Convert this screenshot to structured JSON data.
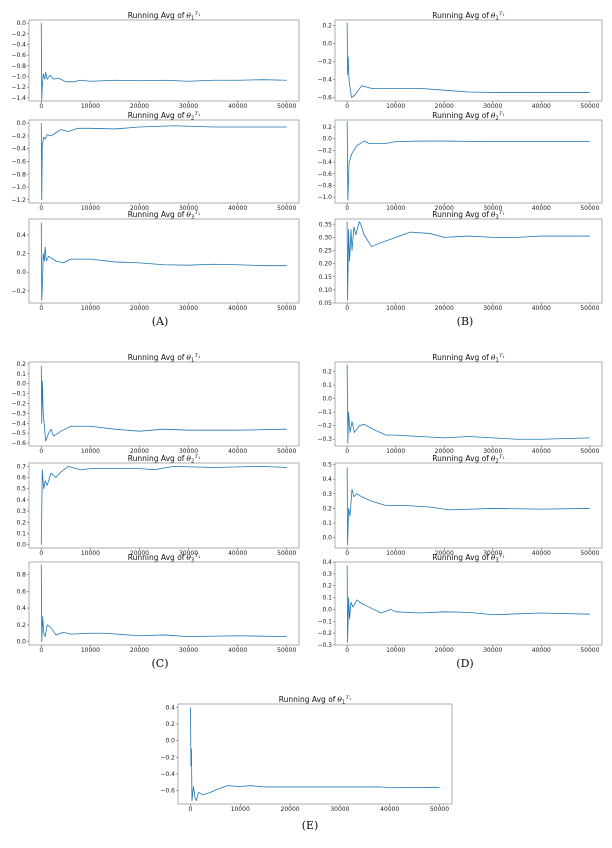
{
  "line_color": "#1f77b4",
  "chart_data": [
    {
      "group": "A",
      "group_label": "(A)",
      "panel": "A1",
      "type": "line",
      "title": {
        "prefix": "Running Avg of",
        "var": "θ",
        "sub": "1",
        "sup": "T",
        "sup_sub": "1"
      },
      "xlim": [
        -2500,
        52500
      ],
      "ylim": [
        -1.46,
        0.06
      ],
      "xticks": [
        0,
        10000,
        20000,
        30000,
        40000,
        50000
      ],
      "yticks": [
        0.0,
        -0.2,
        -0.4,
        -0.6,
        -0.8,
        -1.0,
        -1.2,
        -1.4
      ],
      "grid": false,
      "x": [
        0,
        100,
        200,
        400,
        700,
        900,
        1200,
        1800,
        2500,
        3500,
        5000,
        6500,
        8000,
        10000,
        15000,
        20000,
        25000,
        30000,
        35000,
        40000,
        45000,
        50000
      ],
      "y": [
        0,
        -1.45,
        -1.2,
        -0.95,
        -1.05,
        -0.92,
        -1.05,
        -0.98,
        -1.05,
        -1.03,
        -1.1,
        -1.1,
        -1.07,
        -1.09,
        -1.07,
        -1.08,
        -1.07,
        -1.09,
        -1.07,
        -1.07,
        -1.06,
        -1.07
      ]
    },
    {
      "group": "A",
      "panel": "A2",
      "type": "line",
      "title": {
        "prefix": "Running Avg of",
        "var": "θ",
        "sub": "2",
        "sup": "T",
        "sup_sub": "1"
      },
      "xlim": [
        -2500,
        52500
      ],
      "ylim": [
        -1.25,
        0.05
      ],
      "xticks": [
        0,
        10000,
        20000,
        30000,
        40000,
        50000
      ],
      "yticks": [
        0.0,
        -0.2,
        -0.4,
        -0.6,
        -0.8,
        -1.0,
        -1.2
      ],
      "grid": false,
      "x": [
        0,
        100,
        200,
        500,
        800,
        1200,
        2000,
        3000,
        4000,
        5500,
        7500,
        10000,
        15000,
        20000,
        27000,
        35000,
        45000,
        50000
      ],
      "y": [
        0,
        -1.2,
        -0.35,
        -0.22,
        -0.25,
        -0.18,
        -0.2,
        -0.15,
        -0.1,
        -0.13,
        -0.08,
        -0.08,
        -0.09,
        -0.06,
        -0.04,
        -0.06,
        -0.06,
        -0.06
      ]
    },
    {
      "group": "A",
      "panel": "A3",
      "type": "line",
      "title": {
        "prefix": "Running Avg of",
        "var": "θ",
        "sub": "3",
        "sup": "T",
        "sup_sub": "1"
      },
      "xlim": [
        -2500,
        52500
      ],
      "ylim": [
        -0.33,
        0.57
      ],
      "xticks": [
        0,
        10000,
        20000,
        30000,
        40000,
        50000
      ],
      "yticks": [
        0.4,
        0.2,
        0.0,
        -0.2
      ],
      "grid": false,
      "x": [
        0,
        100,
        200,
        400,
        600,
        800,
        1000,
        1500,
        3000,
        4500,
        6000,
        10000,
        15000,
        20000,
        25000,
        30000,
        35000,
        40000,
        45000,
        50000
      ],
      "y": [
        0.53,
        -0.3,
        -0.18,
        0.2,
        0.12,
        0.27,
        0.12,
        0.17,
        0.12,
        0.1,
        0.14,
        0.14,
        0.11,
        0.1,
        0.08,
        0.075,
        0.085,
        0.08,
        0.07,
        0.07
      ]
    },
    {
      "group": "B",
      "group_label": "(B)",
      "panel": "B1",
      "type": "line",
      "title": {
        "prefix": "Running Avg of",
        "var": "θ",
        "sub": "1",
        "sup": "T",
        "sup_sub": "1"
      },
      "xlim": [
        -2500,
        52500
      ],
      "ylim": [
        -0.64,
        0.26
      ],
      "xticks": [
        0,
        10000,
        20000,
        30000,
        40000,
        50000
      ],
      "yticks": [
        0.2,
        0.0,
        -0.2,
        -0.4,
        -0.6
      ],
      "grid": false,
      "x": [
        0,
        100,
        200,
        400,
        900,
        1500,
        3000,
        5000,
        10000,
        15000,
        20000,
        25000,
        30000,
        40000,
        50000
      ],
      "y": [
        0.23,
        -0.35,
        -0.15,
        -0.42,
        -0.6,
        -0.58,
        -0.47,
        -0.5,
        -0.5,
        -0.5,
        -0.52,
        -0.54,
        -0.545,
        -0.545,
        -0.545
      ]
    },
    {
      "group": "B",
      "panel": "B2",
      "type": "line",
      "title": {
        "prefix": "Running Avg of",
        "var": "θ",
        "sub": "2",
        "sup": "T",
        "sup_sub": "1"
      },
      "xlim": [
        -2500,
        52500
      ],
      "ylim": [
        -1.1,
        0.32
      ],
      "xticks": [
        0,
        10000,
        20000,
        30000,
        40000,
        50000
      ],
      "yticks": [
        0.2,
        0.0,
        -0.2,
        -0.4,
        -0.6,
        -0.8,
        -1.0
      ],
      "grid": false,
      "x": [
        0,
        150,
        400,
        1000,
        2000,
        3500,
        4500,
        8000,
        10000,
        15000,
        20000,
        30000,
        50000
      ],
      "y": [
        0.3,
        -1.05,
        -0.4,
        -0.25,
        -0.12,
        -0.04,
        -0.08,
        -0.08,
        -0.05,
        -0.04,
        -0.04,
        -0.05,
        -0.05
      ]
    },
    {
      "group": "B",
      "panel": "B3",
      "type": "line",
      "title": {
        "prefix": "Running Avg of",
        "var": "θ",
        "sub": "3",
        "sup": "T",
        "sup_sub": "1"
      },
      "xlim": [
        -2500,
        52500
      ],
      "ylim": [
        0.05,
        0.37
      ],
      "xticks": [
        0,
        10000,
        20000,
        30000,
        40000,
        50000
      ],
      "yticks": [
        0.35,
        0.3,
        0.25,
        0.2,
        0.15,
        0.1,
        0.05
      ],
      "grid": false,
      "x": [
        0,
        100,
        300,
        500,
        800,
        1000,
        1400,
        1800,
        2500,
        2800,
        3500,
        5000,
        7000,
        10000,
        13000,
        17000,
        20000,
        25000,
        30000,
        35000,
        40000,
        45000,
        50000
      ],
      "y": [
        0.36,
        0.06,
        0.33,
        0.21,
        0.33,
        0.25,
        0.34,
        0.31,
        0.36,
        0.35,
        0.31,
        0.265,
        0.28,
        0.3,
        0.32,
        0.315,
        0.3,
        0.305,
        0.3,
        0.3,
        0.305,
        0.305,
        0.305
      ]
    },
    {
      "group": "C",
      "group_label": "(C)",
      "panel": "C1",
      "type": "line",
      "title": {
        "prefix": "Running Avg of",
        "var": "θ",
        "sub": "1",
        "sup": "T",
        "sup_sub": "1"
      },
      "xlim": [
        -2500,
        52500
      ],
      "ylim": [
        -0.63,
        0.22
      ],
      "xticks": [
        0,
        10000,
        20000,
        30000,
        40000,
        50000
      ],
      "yticks": [
        0.2,
        0.1,
        0.0,
        -0.1,
        -0.2,
        -0.3,
        -0.4,
        -0.5,
        -0.6
      ],
      "grid": false,
      "x": [
        0,
        100,
        200,
        400,
        900,
        1500,
        2000,
        2500,
        4000,
        6000,
        10000,
        15000,
        20000,
        25000,
        30000,
        40000,
        50000
      ],
      "y": [
        0.18,
        -0.4,
        0.03,
        -0.3,
        -0.58,
        -0.5,
        -0.46,
        -0.53,
        -0.48,
        -0.43,
        -0.43,
        -0.46,
        -0.48,
        -0.46,
        -0.47,
        -0.47,
        -0.46
      ]
    },
    {
      "group": "C",
      "panel": "C2",
      "type": "line",
      "title": {
        "prefix": "Running Avg of",
        "var": "θ",
        "sub": "2",
        "sup": "T",
        "sup_sub": "1"
      },
      "xlim": [
        -2500,
        52500
      ],
      "ylim": [
        -0.03,
        0.73
      ],
      "xticks": [
        0,
        10000,
        20000,
        30000,
        40000,
        50000
      ],
      "yticks": [
        0.7,
        0.6,
        0.5,
        0.4,
        0.3,
        0.2,
        0.1,
        0.0
      ],
      "grid": false,
      "x": [
        0,
        100,
        200,
        500,
        800,
        1200,
        2000,
        3000,
        4000,
        5500,
        8000,
        10000,
        20000,
        23000,
        27000,
        35000,
        45000,
        50000
      ],
      "y": [
        0.0,
        0.3,
        0.67,
        0.5,
        0.57,
        0.53,
        0.64,
        0.6,
        0.65,
        0.7,
        0.67,
        0.68,
        0.68,
        0.67,
        0.7,
        0.69,
        0.7,
        0.69
      ]
    },
    {
      "group": "C",
      "panel": "C3",
      "type": "line",
      "title": {
        "prefix": "Running Avg of",
        "var": "θ",
        "sub": "3",
        "sup": "T",
        "sup_sub": "1"
      },
      "xlim": [
        -2500,
        52500
      ],
      "ylim": [
        -0.04,
        0.95
      ],
      "xticks": [
        0,
        10000,
        20000,
        30000,
        40000,
        50000
      ],
      "yticks": [
        0.8,
        0.6,
        0.4,
        0.2,
        0.0
      ],
      "grid": false,
      "x": [
        0,
        100,
        300,
        500,
        800,
        1200,
        1800,
        3000,
        4500,
        6000,
        10000,
        13000,
        20000,
        25000,
        30000,
        40000,
        50000
      ],
      "y": [
        0.92,
        0.0,
        0.3,
        0.1,
        0.06,
        0.2,
        0.18,
        0.08,
        0.11,
        0.09,
        0.1,
        0.1,
        0.07,
        0.08,
        0.06,
        0.07,
        0.06
      ]
    },
    {
      "group": "D",
      "group_label": "(D)",
      "panel": "D1",
      "type": "line",
      "title": {
        "prefix": "Running Avg of",
        "var": "θ",
        "sub": "1",
        "sup": "T",
        "sup_sub": "1"
      },
      "xlim": [
        -2500,
        52500
      ],
      "ylim": [
        -0.35,
        0.27
      ],
      "xticks": [
        0,
        10000,
        20000,
        30000,
        40000,
        50000
      ],
      "yticks": [
        0.2,
        0.1,
        0.0,
        -0.1,
        -0.2,
        -0.3
      ],
      "grid": false,
      "x": [
        0,
        150,
        300,
        600,
        1000,
        1500,
        2500,
        3500,
        5000,
        8000,
        10000,
        15000,
        20000,
        25000,
        30000,
        35000,
        40000,
        50000
      ],
      "y": [
        0.25,
        -0.33,
        -0.1,
        -0.25,
        -0.17,
        -0.25,
        -0.2,
        -0.19,
        -0.22,
        -0.27,
        -0.27,
        -0.28,
        -0.29,
        -0.28,
        -0.29,
        -0.3,
        -0.3,
        -0.29
      ]
    },
    {
      "group": "D",
      "panel": "D2",
      "type": "line",
      "title": {
        "prefix": "Running Avg of",
        "var": "θ",
        "sub": "2",
        "sup": "T",
        "sup_sub": "1"
      },
      "xlim": [
        -2500,
        52500
      ],
      "ylim": [
        -0.07,
        0.51
      ],
      "xticks": [
        0,
        10000,
        20000,
        30000,
        40000,
        50000
      ],
      "yticks": [
        0.5,
        0.4,
        0.3,
        0.2,
        0.1,
        0.0
      ],
      "grid": false,
      "x": [
        0,
        100,
        300,
        600,
        1000,
        1400,
        2000,
        3000,
        5000,
        8000,
        12000,
        17000,
        21000,
        30000,
        40000,
        50000
      ],
      "y": [
        0.48,
        -0.05,
        0.2,
        0.15,
        0.33,
        0.28,
        0.3,
        0.28,
        0.25,
        0.22,
        0.22,
        0.21,
        0.19,
        0.2,
        0.195,
        0.2
      ]
    },
    {
      "group": "D",
      "panel": "D3",
      "type": "line",
      "title": {
        "prefix": "Running Avg of",
        "var": "θ",
        "sub": "3",
        "sup": "T",
        "sup_sub": "1"
      },
      "xlim": [
        -2500,
        52500
      ],
      "ylim": [
        -0.3,
        0.4
      ],
      "xticks": [
        0,
        10000,
        20000,
        30000,
        40000,
        50000
      ],
      "yticks": [
        0.4,
        0.3,
        0.2,
        0.1,
        0.0,
        -0.1,
        -0.2,
        -0.3
      ],
      "grid": false,
      "x": [
        0,
        100,
        300,
        500,
        800,
        1200,
        2000,
        3000,
        4500,
        7000,
        9000,
        10000,
        15000,
        20000,
        25000,
        30000,
        40000,
        50000
      ],
      "y": [
        0.37,
        -0.28,
        0.1,
        -0.08,
        0.06,
        0.02,
        0.08,
        0.05,
        0.02,
        -0.03,
        0.0,
        -0.02,
        -0.03,
        -0.02,
        -0.025,
        -0.045,
        -0.03,
        -0.04
      ]
    },
    {
      "group": "E",
      "group_label": "(E)",
      "panel": "E1",
      "type": "line",
      "title": {
        "prefix": "Running Avg of",
        "var": "θ",
        "sub": "1",
        "sup": "T",
        "sup_sub": "1"
      },
      "xlim": [
        -2500,
        52500
      ],
      "ylim": [
        -0.76,
        0.44
      ],
      "xticks": [
        0,
        10000,
        20000,
        30000,
        40000,
        50000
      ],
      "yticks": [
        0.4,
        0.2,
        0.0,
        -0.2,
        -0.4,
        -0.6
      ],
      "grid": false,
      "x": [
        0,
        100,
        200,
        300,
        600,
        900,
        1200,
        1600,
        2500,
        4000,
        5500,
        7500,
        10000,
        12000,
        15000,
        30000,
        38000,
        40000,
        50000
      ],
      "y": [
        0.4,
        -0.3,
        -0.1,
        -0.72,
        -0.55,
        -0.68,
        -0.72,
        -0.62,
        -0.65,
        -0.62,
        -0.58,
        -0.54,
        -0.55,
        -0.54,
        -0.555,
        -0.555,
        -0.555,
        -0.565,
        -0.56
      ]
    }
  ]
}
